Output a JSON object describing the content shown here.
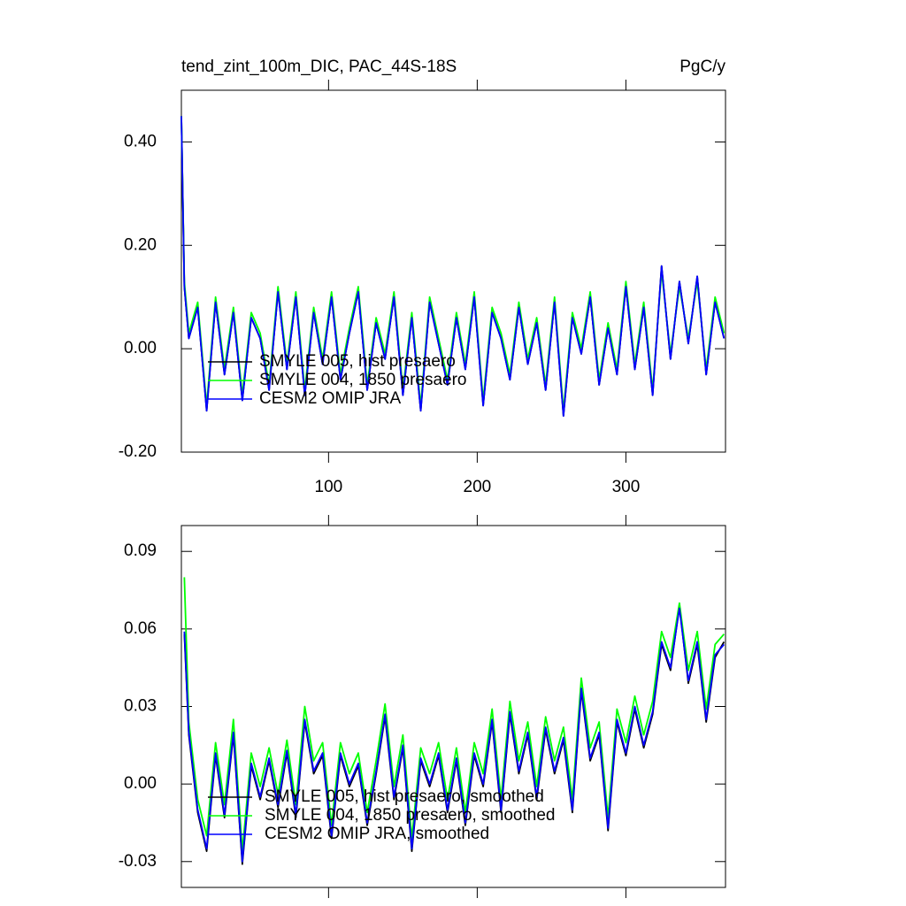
{
  "chart_data": [
    {
      "type": "line",
      "title": "tend_zint_100m_DIC, PAC_44S-18S",
      "units": "PgC/y",
      "x": [
        1,
        3,
        6,
        12,
        18,
        24,
        30,
        36,
        42,
        48,
        54,
        60,
        66,
        72,
        78,
        84,
        90,
        96,
        102,
        108,
        114,
        120,
        126,
        132,
        138,
        144,
        150,
        156,
        162,
        168,
        174,
        180,
        186,
        192,
        198,
        204,
        210,
        216,
        222,
        228,
        234,
        240,
        246,
        252,
        258,
        264,
        270,
        276,
        282,
        288,
        294,
        300,
        306,
        312,
        318,
        324,
        330,
        336,
        342,
        348,
        354,
        360,
        366
      ],
      "series": [
        {
          "name": "SMYLE 005, hist presaero",
          "color": "#000000",
          "values": [
            0.45,
            0.12,
            0.02,
            0.08,
            -0.12,
            0.09,
            -0.05,
            0.07,
            -0.1,
            0.06,
            0.02,
            -0.08,
            0.11,
            -0.04,
            0.1,
            -0.09,
            0.07,
            -0.03,
            0.1,
            -0.06,
            0.03,
            0.11,
            -0.08,
            0.05,
            -0.02,
            0.1,
            -0.09,
            0.06,
            -0.12,
            0.09,
            0.01,
            -0.07,
            0.06,
            -0.04,
            0.1,
            -0.11,
            0.07,
            0.02,
            -0.06,
            0.08,
            -0.03,
            0.05,
            -0.08,
            0.09,
            -0.13,
            0.06,
            -0.01,
            0.1,
            -0.07,
            0.04,
            -0.05,
            0.12,
            -0.04,
            0.08,
            -0.09,
            0.16,
            -0.02,
            0.13,
            0.01,
            0.14,
            -0.05,
            0.09,
            0.02
          ]
        },
        {
          "name": "SMYLE 004, 1850 presaero",
          "color": "#00ff00",
          "values": [
            0.45,
            0.13,
            0.03,
            0.09,
            -0.11,
            0.1,
            -0.04,
            0.08,
            -0.09,
            0.07,
            0.03,
            -0.07,
            0.12,
            -0.03,
            0.11,
            -0.08,
            0.08,
            -0.02,
            0.11,
            -0.05,
            0.04,
            0.12,
            -0.07,
            0.06,
            -0.01,
            0.11,
            -0.08,
            0.07,
            -0.11,
            0.1,
            0.02,
            -0.06,
            0.07,
            -0.03,
            0.11,
            -0.1,
            0.08,
            0.03,
            -0.05,
            0.09,
            -0.02,
            0.06,
            -0.07,
            0.1,
            -0.12,
            0.07,
            0.0,
            0.11,
            -0.06,
            0.05,
            -0.04,
            0.13,
            -0.03,
            0.09,
            -0.08,
            0.15,
            -0.01,
            0.12,
            0.02,
            0.13,
            -0.04,
            0.1,
            0.03
          ]
        },
        {
          "name": "CESM2 OMIP JRA",
          "color": "#0000ff",
          "values": [
            0.45,
            0.12,
            0.02,
            0.08,
            -0.12,
            0.09,
            -0.05,
            0.07,
            -0.1,
            0.06,
            0.02,
            -0.08,
            0.11,
            -0.04,
            0.1,
            -0.09,
            0.07,
            -0.03,
            0.1,
            -0.06,
            0.03,
            0.11,
            -0.08,
            0.05,
            -0.02,
            0.1,
            -0.09,
            0.06,
            -0.12,
            0.09,
            0.01,
            -0.07,
            0.06,
            -0.04,
            0.1,
            -0.11,
            0.07,
            0.02,
            -0.06,
            0.08,
            -0.03,
            0.05,
            -0.08,
            0.09,
            -0.13,
            0.06,
            -0.01,
            0.1,
            -0.07,
            0.04,
            -0.05,
            0.12,
            -0.04,
            0.08,
            -0.09,
            0.16,
            -0.02,
            0.13,
            0.01,
            0.14,
            -0.05,
            0.09,
            0.02
          ]
        }
      ],
      "xlim": [
        1,
        367
      ],
      "xticks": [
        100,
        200,
        300
      ],
      "xtick_labels": true,
      "ylim": [
        -0.2,
        0.5
      ],
      "yticks": [
        {
          "value": -0.2,
          "label": "-0.20"
        },
        {
          "value": 0,
          "label": "0.00"
        },
        {
          "value": 0.2,
          "label": "0.20"
        },
        {
          "value": 0.4,
          "label": "0.40"
        }
      ],
      "legend": "lower left"
    },
    {
      "type": "line",
      "x": [
        3,
        6,
        12,
        18,
        24,
        30,
        36,
        42,
        48,
        54,
        60,
        66,
        72,
        78,
        84,
        90,
        96,
        102,
        108,
        114,
        120,
        126,
        132,
        138,
        144,
        150,
        156,
        162,
        168,
        174,
        180,
        186,
        192,
        198,
        204,
        210,
        216,
        222,
        228,
        234,
        240,
        246,
        252,
        258,
        264,
        270,
        276,
        282,
        288,
        294,
        300,
        306,
        312,
        318,
        324,
        330,
        336,
        342,
        348,
        354,
        360,
        366
      ],
      "series": [
        {
          "name": "SMYLE 005, hist presaero, smoothed",
          "color": "#000000",
          "values": [
            0.058,
            0.019,
            -0.011,
            -0.026,
            0.011,
            -0.013,
            0.019,
            -0.031,
            0.007,
            -0.006,
            0.009,
            -0.009,
            0.012,
            -0.013,
            0.024,
            0.004,
            0.011,
            -0.021,
            0.011,
            -0.001,
            0.007,
            -0.016,
            0.004,
            0.026,
            -0.006,
            0.014,
            -0.026,
            0.009,
            -0.001,
            0.011,
            -0.011,
            0.009,
            -0.016,
            0.011,
            -0.001,
            0.024,
            -0.011,
            0.027,
            0.004,
            0.019,
            -0.006,
            0.021,
            0.004,
            0.017,
            -0.011,
            0.036,
            0.009,
            0.019,
            -0.018,
            0.024,
            0.011,
            0.029,
            0.014,
            0.027,
            0.054,
            0.044,
            0.069,
            0.039,
            0.054,
            0.024,
            0.049,
            0.055
          ]
        },
        {
          "name": "SMYLE 004, 1850 presaero, smoothed",
          "color": "#00ff00",
          "values": [
            0.08,
            0.024,
            -0.006,
            -0.02,
            0.016,
            -0.008,
            0.025,
            -0.026,
            0.012,
            -0.001,
            0.014,
            -0.004,
            0.017,
            -0.008,
            0.03,
            0.009,
            0.016,
            -0.016,
            0.016,
            0.004,
            0.012,
            -0.011,
            0.009,
            0.031,
            -0.001,
            0.019,
            -0.021,
            0.014,
            0.004,
            0.016,
            -0.006,
            0.014,
            -0.011,
            0.016,
            0.004,
            0.029,
            -0.006,
            0.032,
            0.009,
            0.024,
            -0.001,
            0.026,
            0.009,
            0.022,
            -0.006,
            0.041,
            0.014,
            0.024,
            -0.013,
            0.029,
            0.016,
            0.034,
            0.019,
            0.032,
            0.059,
            0.049,
            0.07,
            0.044,
            0.059,
            0.029,
            0.054,
            0.058
          ]
        },
        {
          "name": "CESM2 OMIP JRA, smoothed",
          "color": "#0000ff",
          "values": [
            0.059,
            0.02,
            -0.01,
            -0.025,
            0.012,
            -0.012,
            0.02,
            -0.03,
            0.008,
            -0.005,
            0.01,
            -0.008,
            0.013,
            -0.012,
            0.025,
            0.005,
            0.012,
            -0.02,
            0.012,
            0.0,
            0.008,
            -0.015,
            0.005,
            0.027,
            -0.005,
            0.015,
            -0.025,
            0.01,
            0.0,
            0.012,
            -0.01,
            0.01,
            -0.015,
            0.012,
            0.0,
            0.025,
            -0.01,
            0.028,
            0.005,
            0.02,
            -0.005,
            0.022,
            0.005,
            0.018,
            -0.01,
            0.037,
            0.01,
            0.02,
            -0.017,
            0.025,
            0.012,
            0.03,
            0.015,
            0.028,
            0.055,
            0.045,
            0.068,
            0.04,
            0.055,
            0.025,
            0.05,
            0.054
          ]
        }
      ],
      "xlim": [
        1,
        367
      ],
      "xticks": [
        100,
        200,
        300
      ],
      "xtick_labels": false,
      "ylim": [
        -0.04,
        0.1
      ],
      "yticks": [
        -0.03,
        {
          "value": 0,
          "label": "0.00"
        },
        0.03,
        0.06,
        0.09
      ],
      "legend": "lower left"
    }
  ]
}
